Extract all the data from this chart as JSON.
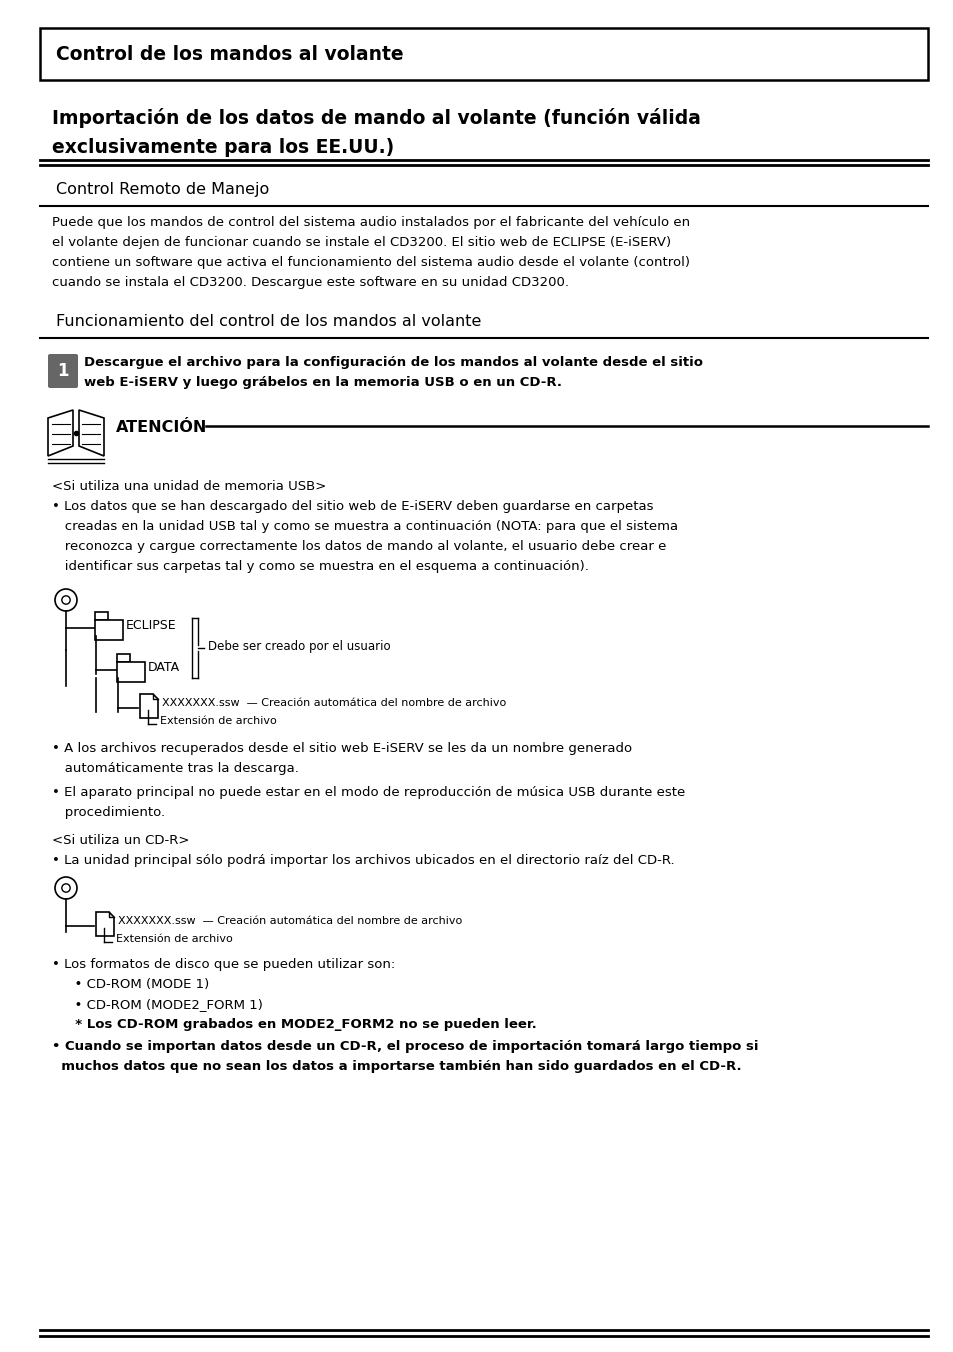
{
  "title_box": "Control de los mandos al volante",
  "section_title_line1": "Importación de los datos de mando al volante (función válida",
  "section_title_line2": "exclusivamente para los EE.UU.)",
  "subsection1": "Control Remoto de Manejo",
  "para1_line1": "Puede que los mandos de control del sistema audio instalados por el fabricante del vehículo en",
  "para1_line2": "el volante dejen de funcionar cuando se instale el CD3200. El sitio web de ECLIPSE (E-iSERV)",
  "para1_line3": "contiene un software que activa el funcionamiento del sistema audio desde el volante (control)",
  "para1_line4": "cuando se instala el CD3200. Descargue este software en su unidad CD3200.",
  "subsection2": "Funcionamiento del control de los mandos al volante",
  "step1_line1": "Descargue el archivo para la configuración de los mandos al volante desde el sitio",
  "step1_line2": "web E-iSERV y luego grábelos en la memoria USB o en un CD-R.",
  "atention_label": "ATENCIÓN",
  "usb_header": "<Si utiliza una unidad de memoria USB>",
  "usb_b1_l1": "• Los datos que se han descargado del sitio web de E-iSERV deben guardarse en carpetas",
  "usb_b1_l2": "   creadas en la unidad USB tal y como se muestra a continuación (NOTA: para que el sistema",
  "usb_b1_l3": "   reconozca y cargue correctamente los datos de mando al volante, el usuario debe crear e",
  "usb_b1_l4": "   identificar sus carpetas tal y como se muestra en el esquema a continuación).",
  "folder_eclipse": "ECLIPSE",
  "folder_data": "DATA",
  "file_ssw": "XXXXXXX.ssw",
  "file_note1": "— Creación automática del nombre de archivo",
  "file_note2": "Extensión de archivo",
  "user_note": "Debe ser creado por el usuario",
  "usb_b2_l1": "• A los archivos recuperados desde el sitio web E-iSERV se les da un nombre generado",
  "usb_b2_l2": "   automáticamente tras la descarga.",
  "usb_b3_l1": "• El aparato principal no puede estar en el modo de reproducción de música USB durante este",
  "usb_b3_l2": "   procedimiento.",
  "cdr_header": "<Si utiliza un CD-R>",
  "cdr_b1": "• La unidad principal sólo podrá importar los archivos ubicados en el directorio raíz del CD-R.",
  "disk_b1": "• Los formatos de disco que se pueden utilizar son:",
  "disk_b2": "  • CD-ROM (MODE 1)",
  "disk_b3": "  • CD-ROM (MODE2_FORM 1)",
  "disk_b4": "  * Los CD-ROM grabados en MODE2_FORM2 no se pueden leer.",
  "disk_b5_l1": "• Cuando se importan datos desde un CD-R, el proceso de importación tomará largo tiempo si",
  "disk_b5_l2": "  muchos datos que no sean los datos a importarse también han sido guardados en el CD-R.",
  "bg_color": "#ffffff",
  "text_color": "#000000"
}
